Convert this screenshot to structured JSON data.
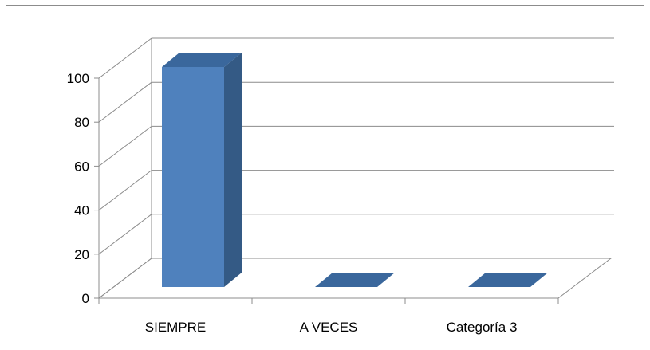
{
  "chart_data": {
    "type": "bar",
    "style": "3d-column",
    "categories": [
      "SIEMPRE",
      "A VECES",
      "Categoría 3"
    ],
    "values": [
      100,
      0,
      0
    ],
    "title": "",
    "xlabel": "",
    "ylabel": "",
    "ylim": [
      0,
      100
    ],
    "yticks": [
      "0",
      "20",
      "40",
      "60",
      "80",
      "100"
    ],
    "grid": true,
    "legend": "none",
    "colors": {
      "bar_front": "#4f81bd",
      "bar_top": "#3a679c",
      "bar_side": "#345a85",
      "gridline": "#8c8c8c"
    }
  }
}
